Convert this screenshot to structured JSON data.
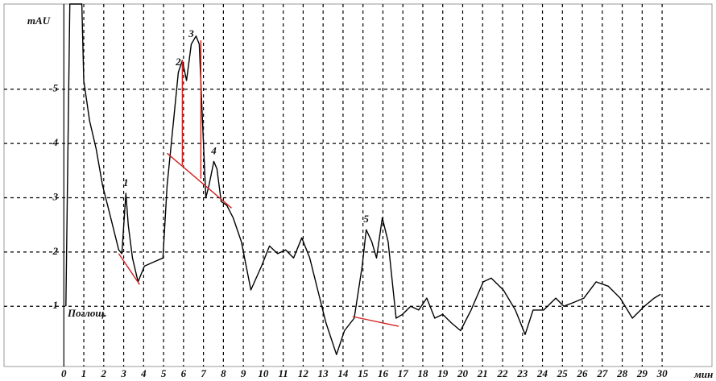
{
  "chart_data": {
    "type": "line",
    "y_label": "mAU",
    "x_label": "мин",
    "trace_label": "Поглощ.",
    "xlim": [
      -3,
      32.5
    ],
    "ylim": [
      -0.11,
      6.57
    ],
    "xticks": [
      0,
      1,
      2,
      3,
      4,
      5,
      6,
      7,
      8,
      9,
      10,
      11,
      12,
      13,
      14,
      15,
      16,
      17,
      18,
      19,
      20,
      21,
      22,
      23,
      24,
      25,
      26,
      27,
      28,
      29,
      30
    ],
    "yticks": [
      1,
      2,
      3,
      4,
      5
    ],
    "grid": true,
    "series": [
      {
        "color": "#000000",
        "x": [
          0.1,
          0.3,
          0.9,
          1.0,
          1.29,
          1.62,
          1.94,
          2.35,
          2.75,
          2.91,
          3.11,
          3.23,
          3.44,
          3.72,
          4.04,
          4.53,
          4.97,
          5.18,
          5.46,
          5.74,
          5.94,
          6.15,
          6.39,
          6.63,
          6.79,
          6.95,
          7.12,
          7.28,
          7.52,
          7.68,
          7.89,
          8.17,
          8.49,
          8.9,
          9.38,
          9.91,
          10.31,
          10.72,
          11.12,
          11.52,
          11.93,
          12.33,
          12.73,
          13.14,
          13.67,
          14.07,
          14.56,
          14.96,
          15.16,
          15.44,
          15.68,
          15.97,
          16.26,
          16.66,
          16.98,
          17.39,
          17.79,
          18.2,
          18.6,
          19.0,
          19.41,
          19.89,
          20.42,
          21.03,
          21.43,
          22.04,
          22.64,
          23.13,
          23.53,
          24.06,
          24.67,
          25.07,
          25.56,
          26.08,
          26.69,
          27.3,
          27.9,
          28.51,
          29.11,
          29.6,
          29.92
        ],
        "values": [
          1.0,
          6.57,
          6.57,
          5.16,
          4.42,
          3.9,
          3.23,
          2.63,
          2.04,
          1.97,
          3.08,
          2.49,
          1.89,
          1.45,
          1.74,
          1.82,
          1.89,
          3.23,
          4.27,
          5.31,
          5.53,
          5.16,
          5.83,
          5.98,
          5.83,
          4.42,
          3.0,
          3.23,
          3.67,
          3.53,
          2.93,
          2.86,
          2.63,
          2.19,
          1.3,
          1.74,
          2.11,
          1.97,
          2.04,
          1.89,
          2.26,
          1.89,
          1.3,
          0.7,
          0.11,
          0.55,
          0.78,
          1.74,
          2.41,
          2.19,
          1.89,
          2.63,
          2.19,
          0.78,
          0.85,
          1.0,
          0.93,
          1.15,
          0.78,
          0.85,
          0.7,
          0.55,
          0.93,
          1.45,
          1.52,
          1.3,
          0.93,
          0.48,
          0.93,
          0.93,
          1.15,
          1.0,
          1.07,
          1.15,
          1.45,
          1.37,
          1.15,
          0.78,
          1.0,
          1.15,
          1.22
        ]
      },
      {
        "color": "#d42020",
        "x": [
          2.75,
          3.8,
          null,
          5.18,
          8.41,
          null,
          5.94,
          5.94,
          null,
          6.87,
          6.87,
          null,
          14.48,
          16.78
        ],
        "values": [
          1.97,
          1.4,
          null,
          3.82,
          2.81,
          null,
          5.53,
          3.6,
          null,
          5.9,
          3.35,
          null,
          0.81,
          0.63
        ]
      }
    ],
    "annotations": [
      {
        "text": "1",
        "x": 3.11
      },
      {
        "text": "2",
        "x": 5.74
      },
      {
        "text": "3",
        "x": 6.39
      },
      {
        "text": "4",
        "x": 7.52
      },
      {
        "text": "5",
        "x": 15.16
      }
    ]
  }
}
